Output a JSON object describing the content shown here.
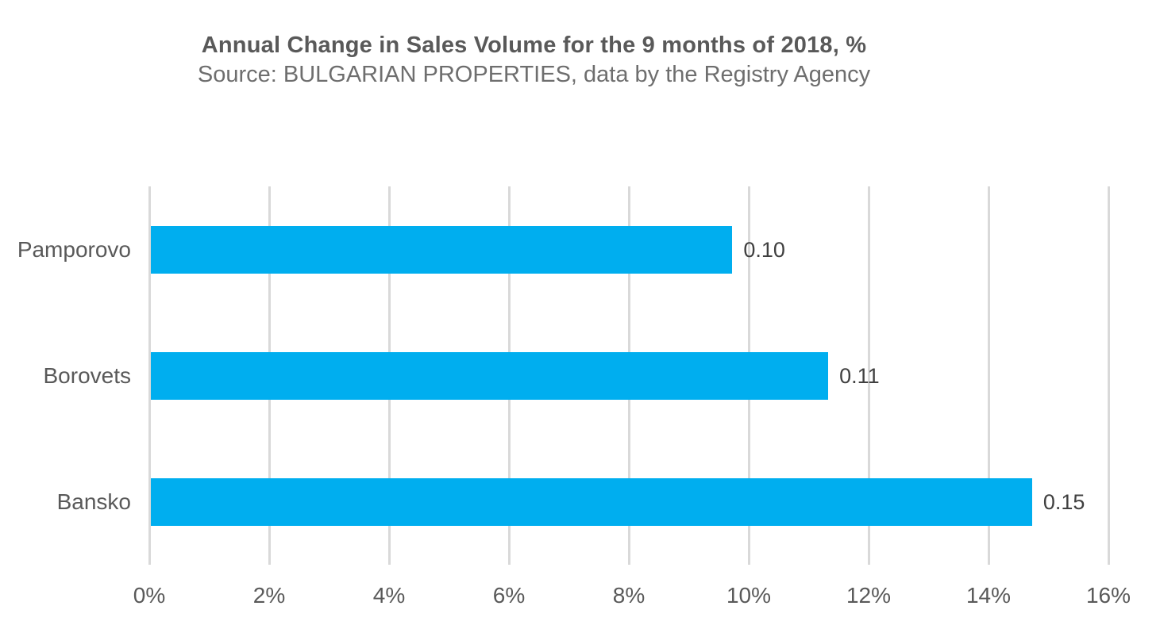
{
  "chart_data": {
    "type": "bar",
    "orientation": "horizontal",
    "title": "Annual Change in Sales Volume for the 9 months of 2018, %",
    "subtitle": "Source: BULGARIAN PROPERTIES, data by the Registry Agency",
    "categories": [
      "Pamporovo",
      "Borovets",
      "Bansko"
    ],
    "values": [
      0.1,
      0.11,
      0.15
    ],
    "data_labels": [
      "0.10",
      "0.11",
      "0.15"
    ],
    "bar_extent_percent": [
      9.7,
      11.3,
      14.7
    ],
    "x_ticks": [
      "0%",
      "2%",
      "4%",
      "6%",
      "8%",
      "10%",
      "12%",
      "14%",
      "16%"
    ],
    "xlim": [
      0,
      16
    ],
    "xlabel": "",
    "ylabel": "",
    "grid": true,
    "legend": false
  },
  "colors": {
    "bar": "#00AEEF",
    "gridline": "#D9D9D9",
    "title": "#595959",
    "subtitle": "#6E6E6E",
    "category_label": "#595959",
    "tick_label": "#595959",
    "data_label": "#404040",
    "background": "#FFFFFF"
  }
}
